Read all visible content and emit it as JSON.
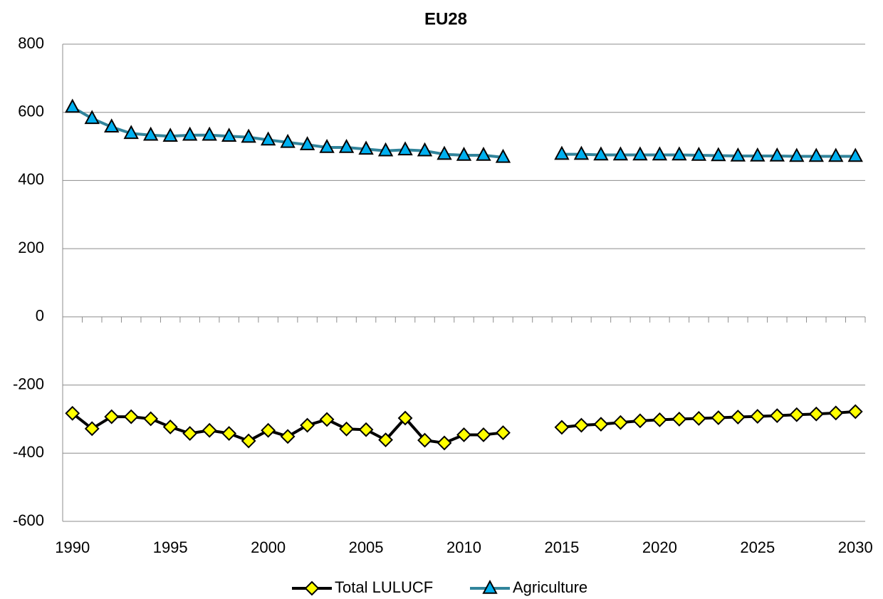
{
  "chart_data": {
    "type": "line",
    "title": "EU28",
    "categories": [
      "1990",
      null,
      null,
      null,
      null,
      "1995",
      null,
      null,
      null,
      null,
      "2000",
      null,
      null,
      null,
      null,
      "2005",
      null,
      null,
      null,
      null,
      "2010",
      null,
      null,
      null,
      null,
      "2015",
      null,
      null,
      null,
      null,
      "2020",
      null,
      null,
      null,
      null,
      "2025",
      null,
      null,
      null,
      null,
      "2030"
    ],
    "series": [
      {
        "name": "Total LULUCF",
        "color": "#000000",
        "marker": "diamond",
        "marker_color": "#ffff00",
        "values": [
          -283,
          -328,
          -293,
          -293,
          -299,
          -323,
          -342,
          -333,
          -342,
          -364,
          -333,
          -351,
          -318,
          -301,
          -329,
          -331,
          -361,
          -297,
          -362,
          -370,
          -346,
          -346,
          -340,
          null,
          null,
          -324,
          -318,
          -315,
          -310,
          -305,
          -302,
          -300,
          -298,
          -296,
          -294,
          -292,
          -290,
          -287,
          -285,
          -282,
          -278
        ]
      },
      {
        "name": "Agriculture",
        "color": "#31849b",
        "marker": "triangle",
        "marker_color": "#00b0f0",
        "values": [
          615,
          582,
          557,
          538,
          533,
          530,
          533,
          533,
          530,
          527,
          519,
          512,
          505,
          497,
          497,
          492,
          487,
          490,
          487,
          477,
          474,
          474,
          468,
          null,
          null,
          477,
          477,
          475,
          475,
          475,
          475,
          475,
          474,
          473,
          472,
          472,
          472,
          471,
          471,
          471,
          471
        ]
      }
    ],
    "ylim": [
      -600,
      800
    ],
    "yticks": [
      -600,
      -400,
      -200,
      0,
      200,
      400,
      600,
      800
    ],
    "grid": true,
    "legend": "bottom"
  }
}
